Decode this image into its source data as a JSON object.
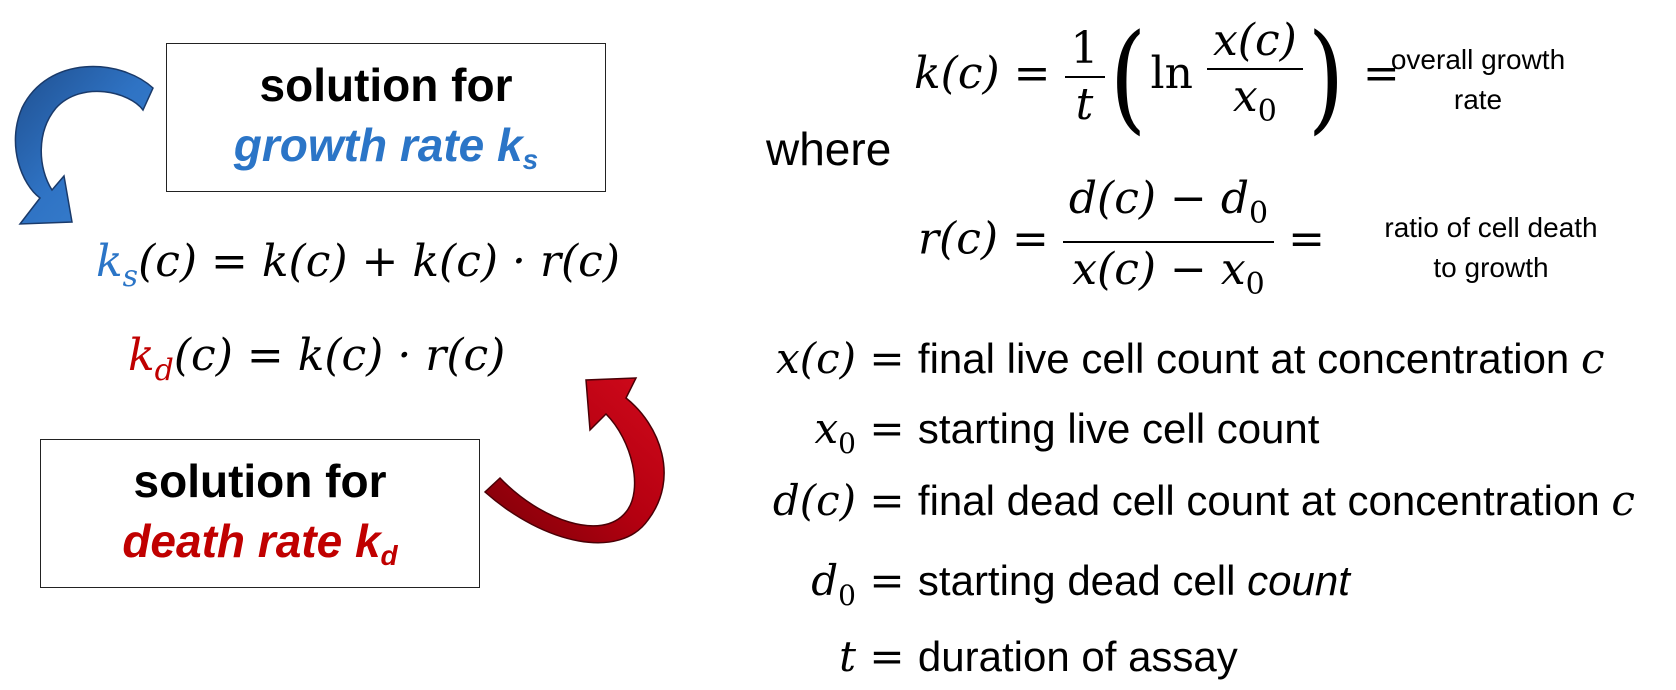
{
  "boxes": {
    "growth": {
      "title": "solution for",
      "subject": "growth rate k",
      "subscript": "s"
    },
    "death": {
      "title": "solution for",
      "subject": "death rate k",
      "subscript": "d"
    }
  },
  "equations": {
    "ks": {
      "symbol": "k",
      "sub": "s",
      "rhs": "(c) = k(c) + k(c) · r(c)"
    },
    "kd": {
      "symbol": "k",
      "sub": "d",
      "rhs": "(c) = k(c) · r(c)"
    },
    "k": {
      "lhs": "k(c) =",
      "numerator": "1",
      "denominator": "t",
      "ln": "ln",
      "inner_num": "x(c)",
      "inner_den": "x",
      "inner_den_sub": "0",
      "eq": "="
    },
    "r": {
      "lhs": "r(c) =",
      "numerator": "d(c) − d",
      "numerator_sub": "0",
      "denominator": "x(c) −  x",
      "denominator_sub": "0",
      "eq": "="
    }
  },
  "notes": {
    "overall": [
      "overall growth",
      "rate"
    ],
    "ratio": [
      "ratio of cell death",
      "to growth"
    ]
  },
  "where": "where",
  "definitions": [
    {
      "var": "x(c)",
      "sub": "",
      "eq": "=",
      "text": "final live cell count at concentration ",
      "tail": "c"
    },
    {
      "var": "x",
      "sub": "0",
      "eq": "=",
      "text": "starting live cell count",
      "tail": ""
    },
    {
      "var": "d(c)",
      "sub": "",
      "eq": "=",
      "text": "final dead cell count at concentration ",
      "tail": "c"
    },
    {
      "var": "d",
      "sub": "0",
      "eq": "=",
      "text": "starting dead cell ",
      "tail": "count"
    },
    {
      "var": "t",
      "sub": "",
      "eq": "=",
      "text": "duration of assay",
      "tail": ""
    }
  ],
  "colors": {
    "growth": "#2b75c7",
    "death": "#c00000",
    "growth_arrow": "#2f6db5",
    "death_arrow": "#a00010"
  }
}
